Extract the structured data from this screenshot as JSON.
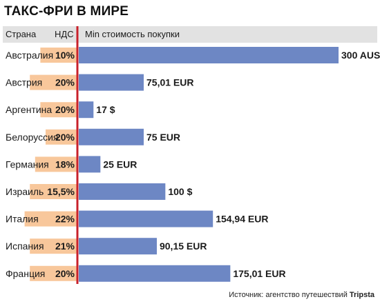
{
  "title": "ТАКС-ФРИ В МИРЕ",
  "headers": {
    "country": "Страна",
    "vat": "НДС",
    "min_cost": "Min стоимость покупки"
  },
  "source_prefix": "Источник: агентство путешествий",
  "source_brand": "Tripsta",
  "colors": {
    "bar": "#6d87c4",
    "vat_bg": "#f8c79b",
    "divider": "#c8202a",
    "header_bg": "#e2e2e2"
  },
  "chart_data": {
    "type": "bar",
    "orientation": "horizontal",
    "categories": [
      "Австралия",
      "Австрия",
      "Аргентина",
      "Белоруссия",
      "Германия",
      "Израиль",
      "Италия",
      "Испания",
      "Франция"
    ],
    "vat": [
      "10%",
      "20%",
      "20%",
      "20%",
      "18%",
      "15,5%",
      "22%",
      "21%",
      "20%"
    ],
    "vat_values": [
      10,
      20,
      20,
      20,
      18,
      15.5,
      22,
      21,
      20
    ],
    "values": [
      300,
      75.01,
      17,
      75,
      25,
      100,
      154.94,
      90.15,
      175.01
    ],
    "value_labels": [
      "300 AUS",
      "75,01 EUR",
      "17 $",
      "75 EUR",
      "25 EUR",
      "100 $",
      "154,94 EUR",
      "90,15 EUR",
      "175,01 EUR"
    ],
    "title": "ТАКС-ФРИ В МИРЕ",
    "xlabel": "Min стоимость покупки",
    "ylabel": "Страна"
  }
}
